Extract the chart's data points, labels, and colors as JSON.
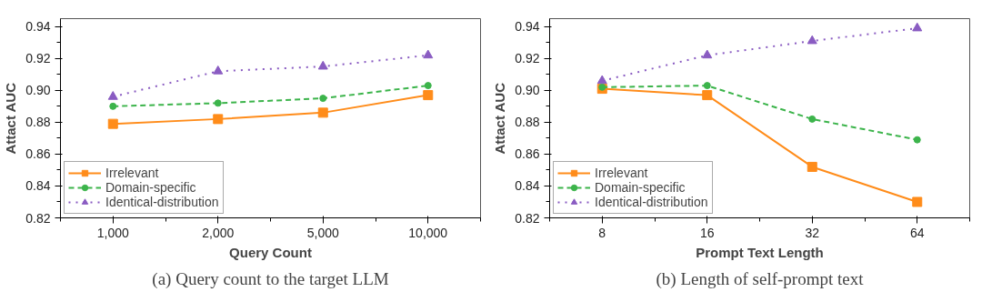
{
  "chart_data": [
    {
      "type": "line",
      "xlabel": "Query Count",
      "ylabel": "Attact AUC",
      "categories": [
        "1,000",
        "2,000",
        "5,000",
        "10,000"
      ],
      "ylim": [
        0.82,
        0.945
      ],
      "yticks": [
        {
          "value": 0.82,
          "label": "0.82"
        },
        {
          "value": 0.84,
          "label": "0.84"
        },
        {
          "value": 0.86,
          "label": "0.86"
        },
        {
          "value": 0.88,
          "label": "0.88"
        },
        {
          "value": 0.9,
          "label": "0.90"
        },
        {
          "value": 0.92,
          "label": "0.92"
        },
        {
          "value": 0.94,
          "label": "0.94"
        }
      ],
      "grid": false,
      "legend": "bottom left",
      "annotations": [
        "(a) Query count to the target LLM"
      ],
      "series": [
        {
          "name": "Irrelevant",
          "color": "#ff8c1a",
          "marker": "square",
          "line_style": "solid",
          "values": [
            0.879,
            0.882,
            0.886,
            0.897
          ]
        },
        {
          "name": "Domain-specific",
          "color": "#3cb44b",
          "marker": "circle",
          "line_style": "dashed",
          "values": [
            0.89,
            0.892,
            0.895,
            0.903
          ]
        },
        {
          "name": "Identical-distribution",
          "color": "#8a5cc2",
          "marker": "triangle",
          "line_style": "dotted",
          "values": [
            0.896,
            0.912,
            0.915,
            0.922
          ]
        }
      ]
    },
    {
      "type": "line",
      "xlabel": "Prompt Text Length",
      "ylabel": "Attact AUC",
      "categories": [
        "8",
        "16",
        "32",
        "64"
      ],
      "ylim": [
        0.82,
        0.945
      ],
      "yticks": [
        {
          "value": 0.82,
          "label": "0.82"
        },
        {
          "value": 0.84,
          "label": "0.84"
        },
        {
          "value": 0.86,
          "label": "0.86"
        },
        {
          "value": 0.88,
          "label": "0.88"
        },
        {
          "value": 0.9,
          "label": "0.90"
        },
        {
          "value": 0.92,
          "label": "0.92"
        },
        {
          "value": 0.94,
          "label": "0.94"
        }
      ],
      "grid": false,
      "legend": "bottom left",
      "annotations": [
        "(b) Length of self-prompt text"
      ],
      "series": [
        {
          "name": "Irrelevant",
          "color": "#ff8c1a",
          "marker": "square",
          "line_style": "solid",
          "values": [
            0.901,
            0.897,
            0.852,
            0.83
          ]
        },
        {
          "name": "Domain-specific",
          "color": "#3cb44b",
          "marker": "circle",
          "line_style": "dashed",
          "values": [
            0.902,
            0.903,
            0.882,
            0.869
          ]
        },
        {
          "name": "Identical-distribution",
          "color": "#8a5cc2",
          "marker": "triangle",
          "line_style": "dotted",
          "values": [
            0.906,
            0.922,
            0.931,
            0.939
          ]
        }
      ]
    }
  ]
}
